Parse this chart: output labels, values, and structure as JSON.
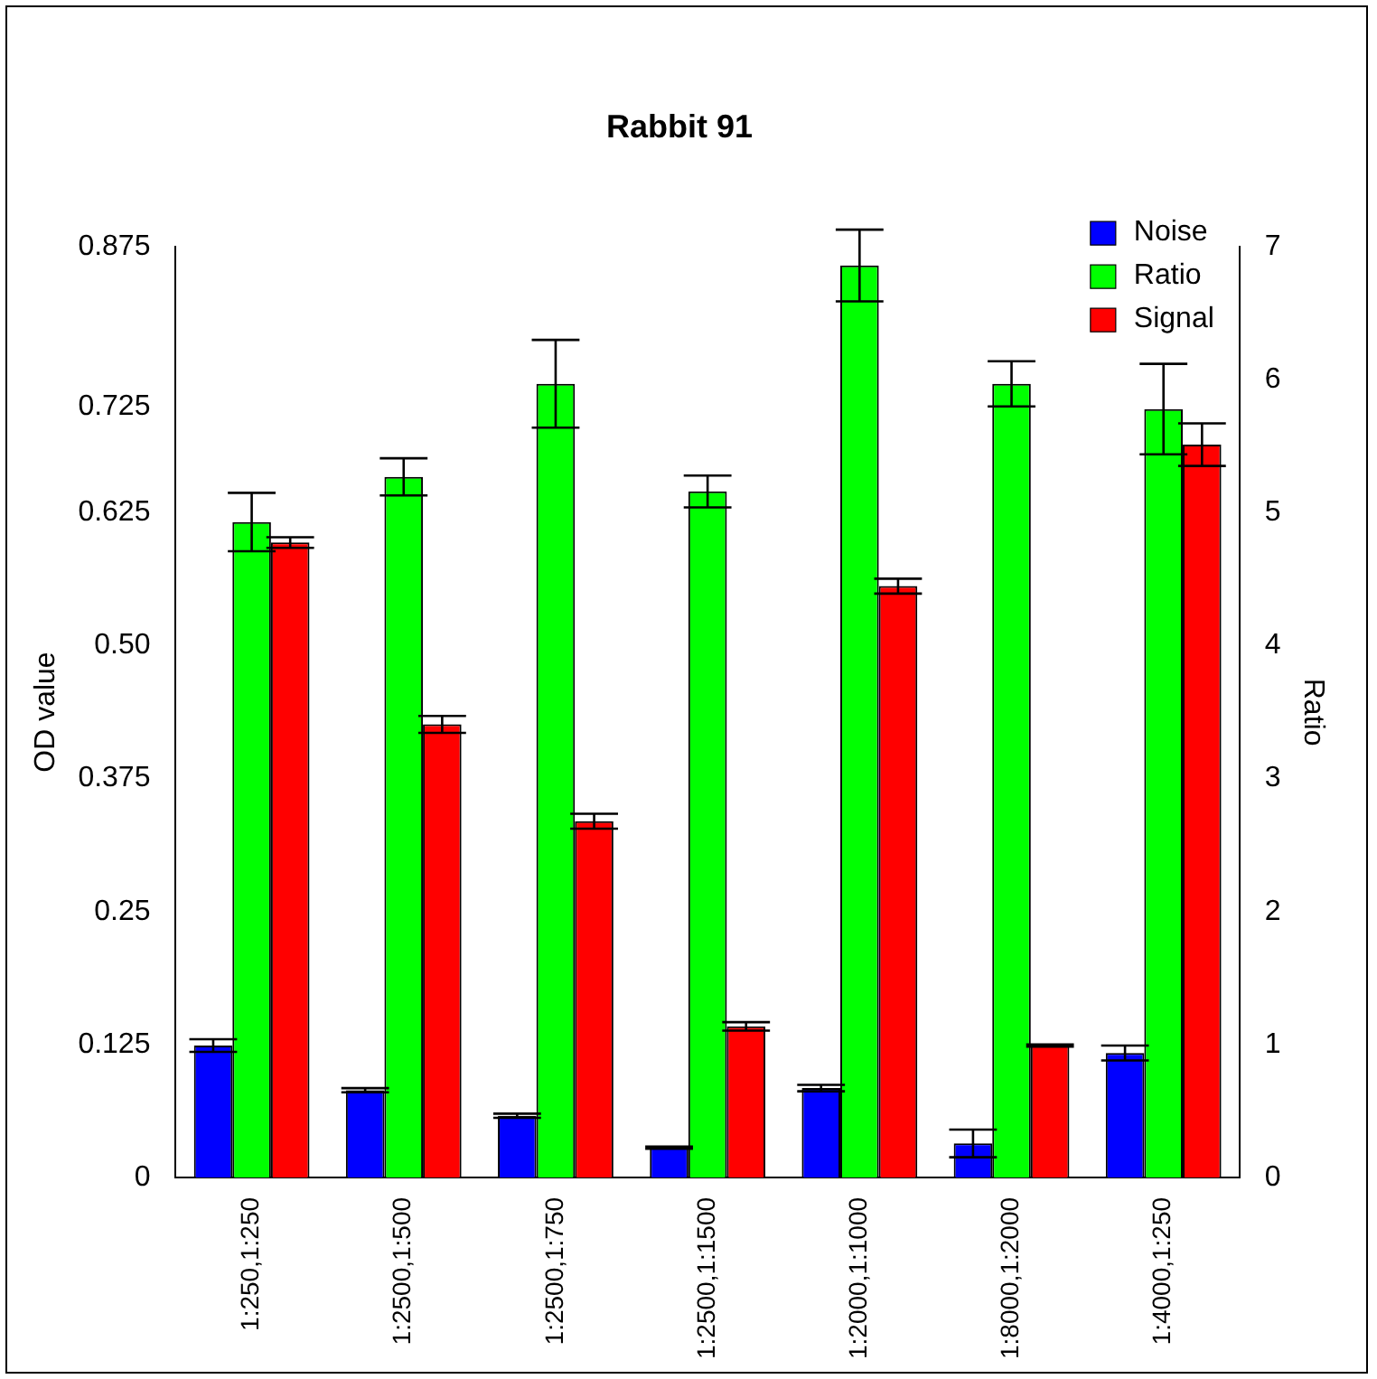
{
  "chart_data": {
    "type": "bar",
    "title": "Rabbit 91",
    "ylabel": "OD value",
    "y2label": "Ratio",
    "categories": [
      "1:250,1:250",
      "1:2500,1:500",
      "1:2500,1:750",
      "1:2500,1:1500",
      "1:2000,1:1000",
      "1:8000,1:2000",
      "1:4000,1:250"
    ],
    "series": [
      {
        "name": "Noise",
        "color": "#0000ff",
        "values": [
          0.124,
          0.082,
          0.058,
          0.028,
          0.084,
          0.032,
          0.117
        ],
        "errors": [
          0.006,
          0.002,
          0.002,
          0.001,
          0.003,
          0.013,
          0.007
        ]
      },
      {
        "name": "Ratio",
        "color": "#00ff00",
        "axis": "y2",
        "values": [
          4.93,
          5.27,
          5.97,
          5.16,
          6.86,
          5.97,
          5.78
        ],
        "errors": [
          0.22,
          0.14,
          0.33,
          0.12,
          0.27,
          0.17,
          0.34
        ]
      },
      {
        "name": "Signal",
        "color": "#ff0000",
        "values": [
          0.597,
          0.426,
          0.335,
          0.142,
          0.556,
          0.124,
          0.689
        ],
        "errors": [
          0.005,
          0.008,
          0.007,
          0.004,
          0.007,
          0.001,
          0.02
        ]
      }
    ],
    "ylim": [
      0,
      0.875
    ],
    "yticks": [
      0,
      0.125,
      0.25,
      0.375,
      {
        "value": 0.5,
        "label": "0.50"
      },
      0.625,
      0.725,
      0.875
    ],
    "y2lim": [
      0,
      7
    ],
    "y2ticks": [
      0,
      1,
      2,
      3,
      4,
      5,
      6,
      7
    ],
    "grid": false,
    "legend": "top right"
  }
}
